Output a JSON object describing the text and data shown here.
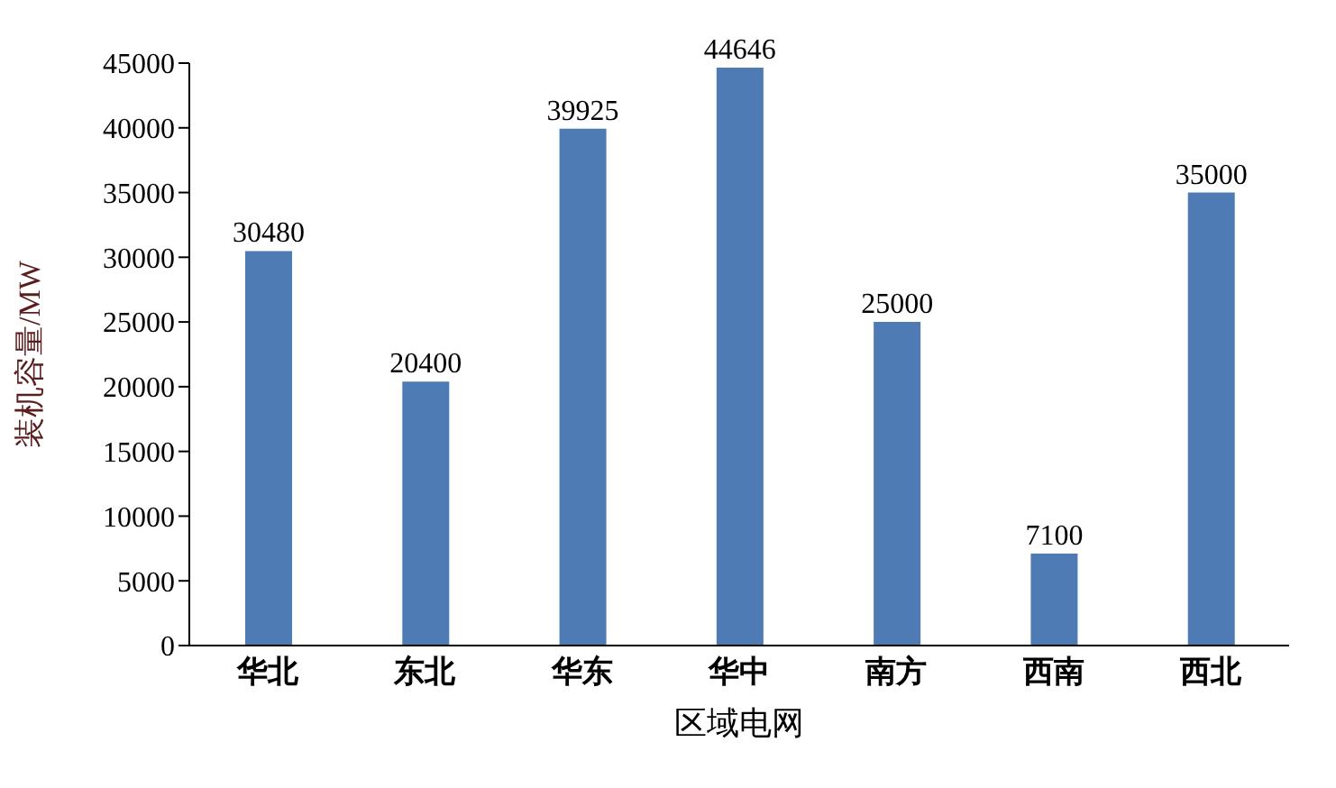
{
  "chart_data": {
    "type": "bar",
    "xlabel": "区域电网",
    "ylabel": "装机容量/MW",
    "categories": [
      "华北",
      "东北",
      "华东",
      "华中",
      "南方",
      "西南",
      "西北"
    ],
    "values": [
      30480,
      20400,
      39925,
      44646,
      25000,
      7100,
      35000
    ],
    "color": "#4f7bb5",
    "ylim": [
      0,
      45000
    ],
    "yticks": [
      0,
      5000,
      10000,
      15000,
      20000,
      25000,
      30000,
      35000,
      40000,
      45000
    ],
    "grid": false,
    "data_labels": true
  }
}
